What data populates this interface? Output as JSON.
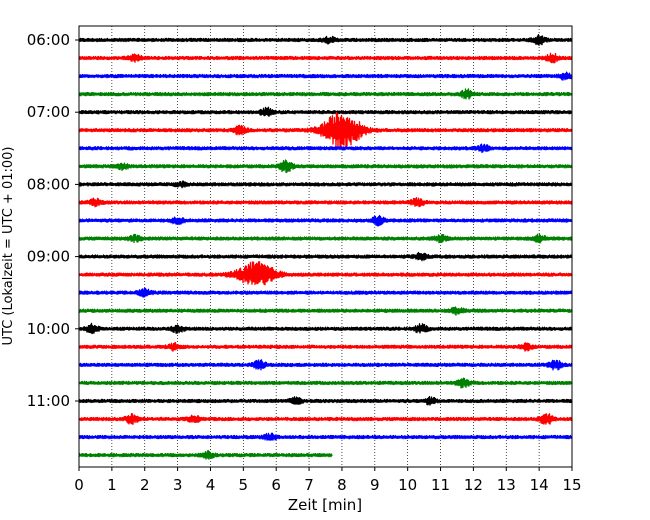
{
  "chart_data": {
    "type": "line",
    "title": "",
    "xlabel": "Zeit  [min]",
    "ylabel": "UTC (Lokalzeit = UTC + 01:00)",
    "xlim": [
      0,
      15
    ],
    "x_ticks": [
      "0",
      "1",
      "2",
      "3",
      "4",
      "5",
      "6",
      "7",
      "8",
      "9",
      "10",
      "11",
      "12",
      "13",
      "14",
      "15"
    ],
    "y_ticks": [
      "06:00",
      "07:00",
      "08:00",
      "09:00",
      "10:00",
      "11:00"
    ],
    "grid": "vertical dotted lines at every minute",
    "trace_colors": [
      "#000000",
      "#ff0000",
      "#0000ff",
      "#008000"
    ],
    "traces": [
      {
        "start": "06:00",
        "color": "#000000",
        "end_min": 15,
        "events": [
          {
            "at": 7.6,
            "amp": 3
          },
          {
            "at": 14.0,
            "amp": 4
          }
        ]
      },
      {
        "start": "06:15",
        "color": "#ff0000",
        "end_min": 15,
        "events": [
          {
            "at": 1.7,
            "amp": 3
          },
          {
            "at": 14.4,
            "amp": 4
          }
        ]
      },
      {
        "start": "06:30",
        "color": "#0000ff",
        "end_min": 15,
        "events": [
          {
            "at": 14.8,
            "amp": 3
          }
        ]
      },
      {
        "start": "06:45",
        "color": "#008000",
        "end_min": 15,
        "events": [
          {
            "at": 11.8,
            "amp": 4
          }
        ]
      },
      {
        "start": "07:00",
        "color": "#000000",
        "end_min": 15,
        "events": [
          {
            "at": 5.7,
            "amp": 4
          }
        ]
      },
      {
        "start": "07:15",
        "color": "#ff0000",
        "end_min": 15,
        "events": [
          {
            "at": 4.9,
            "amp": 4
          },
          {
            "at": 8.0,
            "amp": 18
          }
        ]
      },
      {
        "start": "07:30",
        "color": "#0000ff",
        "end_min": 15,
        "events": [
          {
            "at": 12.3,
            "amp": 3
          }
        ]
      },
      {
        "start": "07:45",
        "color": "#008000",
        "end_min": 15,
        "events": [
          {
            "at": 1.3,
            "amp": 3
          },
          {
            "at": 6.3,
            "amp": 6
          }
        ]
      },
      {
        "start": "08:00",
        "color": "#000000",
        "end_min": 15,
        "events": [
          {
            "at": 3.1,
            "amp": 2
          }
        ]
      },
      {
        "start": "08:15",
        "color": "#ff0000",
        "end_min": 15,
        "events": [
          {
            "at": 0.5,
            "amp": 3
          },
          {
            "at": 10.3,
            "amp": 4
          }
        ]
      },
      {
        "start": "08:30",
        "color": "#0000ff",
        "end_min": 15,
        "events": [
          {
            "at": 3.0,
            "amp": 3
          },
          {
            "at": 9.1,
            "amp": 4
          }
        ]
      },
      {
        "start": "08:45",
        "color": "#008000",
        "end_min": 15,
        "events": [
          {
            "at": 1.7,
            "amp": 3
          },
          {
            "at": 11.0,
            "amp": 3
          },
          {
            "at": 14.0,
            "amp": 3
          }
        ]
      },
      {
        "start": "09:00",
        "color": "#000000",
        "end_min": 15,
        "events": [
          {
            "at": 10.4,
            "amp": 3
          }
        ]
      },
      {
        "start": "09:15",
        "color": "#ff0000",
        "end_min": 15,
        "events": [
          {
            "at": 5.4,
            "amp": 12
          }
        ]
      },
      {
        "start": "09:30",
        "color": "#0000ff",
        "end_min": 15,
        "events": [
          {
            "at": 2.0,
            "amp": 3
          }
        ]
      },
      {
        "start": "09:45",
        "color": "#008000",
        "end_min": 15,
        "events": [
          {
            "at": 11.5,
            "amp": 3
          }
        ]
      },
      {
        "start": "10:00",
        "color": "#000000",
        "end_min": 15,
        "events": [
          {
            "at": 0.4,
            "amp": 4
          },
          {
            "at": 3.0,
            "amp": 3
          },
          {
            "at": 10.4,
            "amp": 4
          }
        ]
      },
      {
        "start": "10:15",
        "color": "#ff0000",
        "end_min": 15,
        "events": [
          {
            "at": 2.9,
            "amp": 3
          },
          {
            "at": 13.6,
            "amp": 3
          }
        ]
      },
      {
        "start": "10:30",
        "color": "#0000ff",
        "end_min": 15,
        "events": [
          {
            "at": 5.5,
            "amp": 4
          },
          {
            "at": 14.5,
            "amp": 4
          }
        ]
      },
      {
        "start": "10:45",
        "color": "#008000",
        "end_min": 15,
        "events": [
          {
            "at": 11.7,
            "amp": 4
          }
        ]
      },
      {
        "start": "11:00",
        "color": "#000000",
        "end_min": 15,
        "events": [
          {
            "at": 6.6,
            "amp": 3
          },
          {
            "at": 10.7,
            "amp": 3
          }
        ]
      },
      {
        "start": "11:15",
        "color": "#ff0000",
        "end_min": 15,
        "events": [
          {
            "at": 1.6,
            "amp": 4
          },
          {
            "at": 3.5,
            "amp": 3
          },
          {
            "at": 14.2,
            "amp": 6
          }
        ]
      },
      {
        "start": "11:30",
        "color": "#0000ff",
        "end_min": 15,
        "events": [
          {
            "at": 5.8,
            "amp": 3
          }
        ]
      },
      {
        "start": "11:45",
        "color": "#008000",
        "end_min": 7.7,
        "events": [
          {
            "at": 3.9,
            "amp": 3
          }
        ]
      }
    ]
  }
}
